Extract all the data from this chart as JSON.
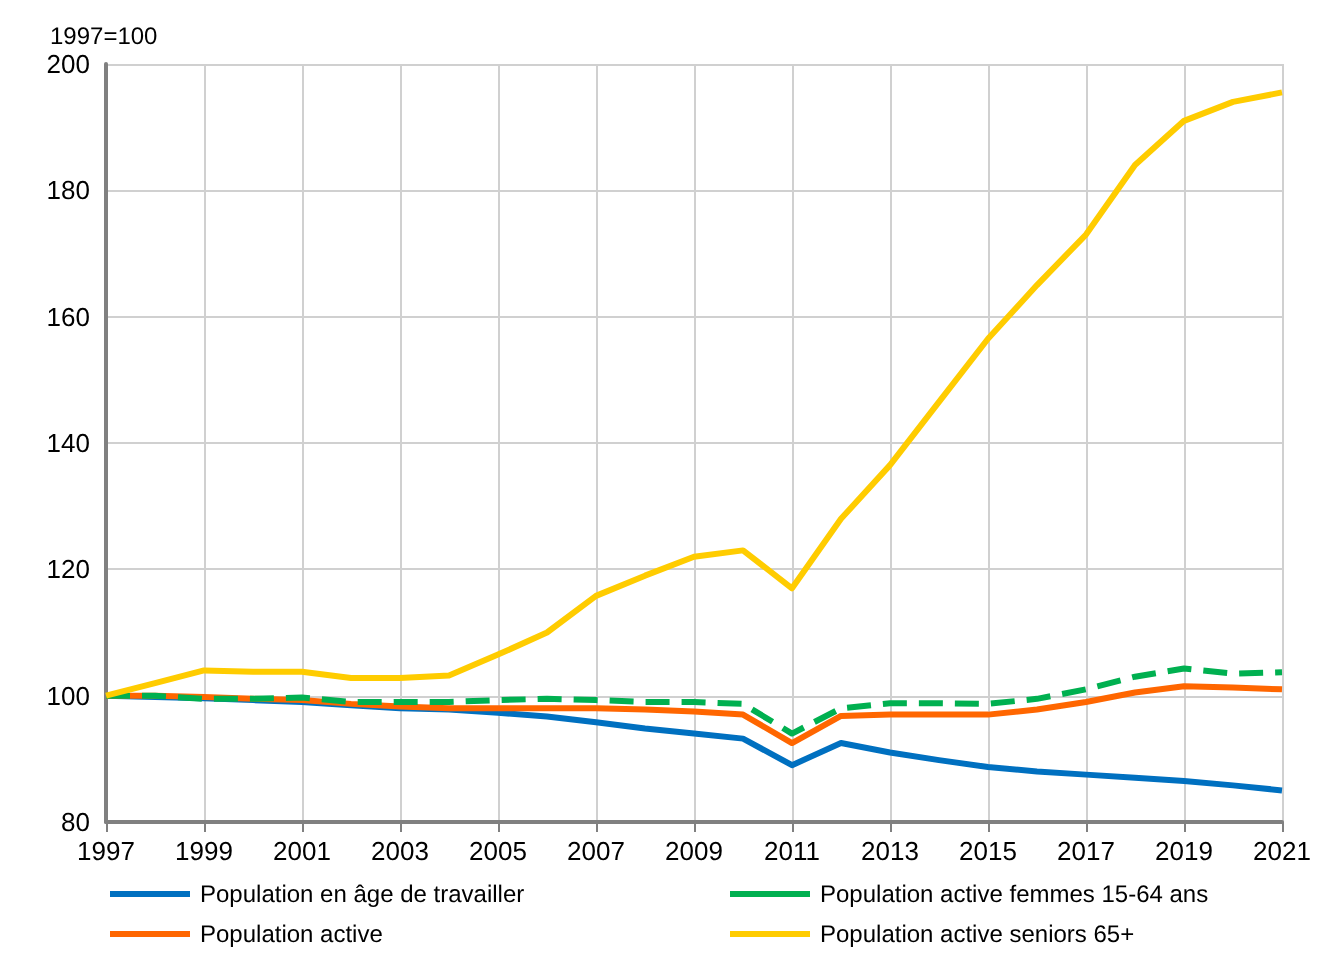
{
  "chart_data": {
    "type": "line",
    "ylabel": "1997=100",
    "x": [
      1997,
      1998,
      1999,
      2000,
      2001,
      2002,
      2003,
      2004,
      2005,
      2006,
      2007,
      2008,
      2009,
      2010,
      2011,
      2012,
      2013,
      2014,
      2015,
      2016,
      2017,
      2018,
      2019,
      2020,
      2021
    ],
    "xlim": [
      1997,
      2021
    ],
    "xticks": [
      1997,
      1999,
      2001,
      2003,
      2005,
      2007,
      2009,
      2011,
      2013,
      2015,
      2017,
      2019,
      2021
    ],
    "ylim": [
      80,
      200
    ],
    "yticks": [
      80,
      100,
      120,
      140,
      160,
      180,
      200
    ],
    "grid": true,
    "legend": "bottom",
    "marker": "none",
    "series": [
      {
        "name": "Population en âge de travailler",
        "color": "#0070c0",
        "line_style": "solid",
        "values": [
          100,
          99.8,
          99.6,
          99.3,
          99,
          98.5,
          98,
          97.8,
          97.3,
          96.7,
          95.8,
          94.8,
          94,
          93.2,
          89,
          92.5,
          91,
          89.8,
          88.7,
          88,
          87.5,
          87,
          86.5,
          85.8,
          85
        ]
      },
      {
        "name": "Population active",
        "color": "#ff6600",
        "line_style": "solid",
        "values": [
          100,
          100,
          99.8,
          99.5,
          99.3,
          98.7,
          98.3,
          98,
          98,
          98,
          98,
          97.8,
          97.5,
          97,
          92.5,
          96.8,
          97,
          97,
          97,
          97.8,
          99,
          100.5,
          101.5,
          101.3,
          101
        ]
      },
      {
        "name": "Population active femmes 15-64 ans",
        "color": "#00b050",
        "line_style": "dashed",
        "values": [
          100,
          100,
          99.5,
          99.5,
          99.7,
          99,
          99,
          99,
          99.3,
          99.5,
          99.3,
          99,
          99,
          98.7,
          94,
          98,
          98.8,
          98.8,
          98.7,
          99.5,
          101,
          103,
          104.3,
          103.5,
          103.7
        ]
      },
      {
        "name": "Population active seniors 65+",
        "color": "#ffcc00",
        "line_style": "solid",
        "values": [
          100,
          102,
          104,
          103.8,
          103.8,
          102.8,
          102.8,
          103.2,
          106.5,
          110,
          115.8,
          119,
          122,
          123,
          117,
          128,
          136.5,
          146.5,
          156.5,
          165,
          173,
          184,
          191,
          194,
          195.5
        ]
      }
    ]
  }
}
